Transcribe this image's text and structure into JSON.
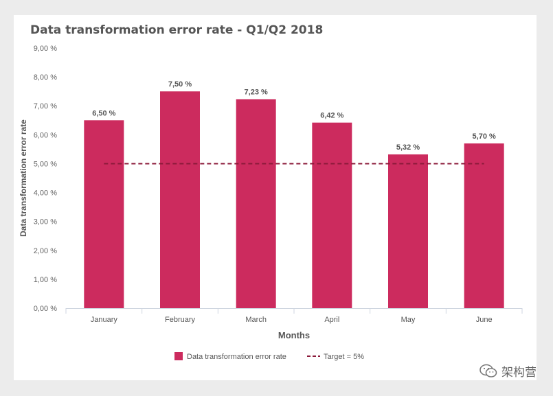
{
  "chart_data": {
    "type": "bar",
    "title": "Data transformation error rate - Q1/Q2 2018",
    "xlabel": "Months",
    "ylabel": "Data transformation error rate",
    "categories": [
      "January",
      "February",
      "March",
      "April",
      "May",
      "June"
    ],
    "series": [
      {
        "name": "Data transformation error rate",
        "values": [
          6.5,
          7.5,
          7.23,
          6.42,
          5.32,
          5.7
        ],
        "labels": [
          "6,50 %",
          "7,50 %",
          "7,23 %",
          "6,42 %",
          "5,32 %",
          "5,70 %"
        ],
        "color": "#cc2b5e"
      }
    ],
    "target": {
      "name": "Target = 5%",
      "value": 5.0,
      "color": "#8b1a3a",
      "style": "dashed"
    },
    "ylim": [
      0,
      9
    ],
    "yticks": [
      0,
      1,
      2,
      3,
      4,
      5,
      6,
      7,
      8,
      9
    ],
    "ytick_labels": [
      "0,00 %",
      "1,00 %",
      "2,00 %",
      "3,00 %",
      "4,00 %",
      "5,00 %",
      "6,00 %",
      "7,00 %",
      "8,00 %",
      "9,00 %"
    ],
    "grid": false,
    "legend_position": "bottom-center"
  },
  "watermark": {
    "text": "架构营"
  }
}
